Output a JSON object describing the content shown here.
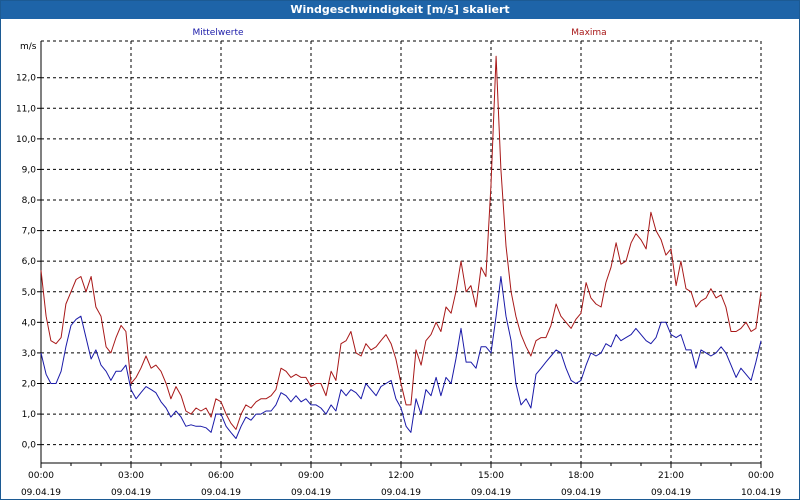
{
  "window": {
    "title": "Windgeschwindigkeit [m/s] skaliert"
  },
  "colors": {
    "titlebar": "#1e64a8",
    "series_mean": "#1a1aa8",
    "series_max": "#a81818",
    "grid": "#000000"
  },
  "chart_data": {
    "type": "line",
    "ylabel": "m/s",
    "ylim": [
      -0.6,
      13.2
    ],
    "y_ticks": [
      "0,0",
      "1,0",
      "2,0",
      "3,0",
      "4,0",
      "5,0",
      "6,0",
      "7,0",
      "8,0",
      "9,0",
      "10,0",
      "11,0",
      "12,0"
    ],
    "x_range_hours": [
      0,
      24
    ],
    "x_ticks": [
      {
        "time": "00:00",
        "date": "09.04.19"
      },
      {
        "time": "03:00",
        "date": "09.04.19"
      },
      {
        "time": "06:00",
        "date": "09.04.19"
      },
      {
        "time": "09:00",
        "date": "09.04.19"
      },
      {
        "time": "12:00",
        "date": "09.04.19"
      },
      {
        "time": "15:00",
        "date": "09.04.19"
      },
      {
        "time": "18:00",
        "date": "09.04.19"
      },
      {
        "time": "21:00",
        "date": "09.04.19"
      },
      {
        "time": "00:00",
        "date": "10.04.19"
      }
    ],
    "grid": true,
    "legend_placement": "top",
    "series": [
      {
        "name": "Mittelwerte",
        "color": "#1a1aa8",
        "points": [
          [
            0.0,
            3.0
          ],
          [
            0.17,
            2.3
          ],
          [
            0.33,
            2.0
          ],
          [
            0.5,
            2.0
          ],
          [
            0.67,
            2.4
          ],
          [
            0.83,
            3.2
          ],
          [
            1.0,
            3.9
          ],
          [
            1.17,
            4.1
          ],
          [
            1.33,
            4.2
          ],
          [
            1.5,
            3.5
          ],
          [
            1.67,
            2.8
          ],
          [
            1.83,
            3.1
          ],
          [
            2.0,
            2.6
          ],
          [
            2.17,
            2.4
          ],
          [
            2.33,
            2.1
          ],
          [
            2.5,
            2.4
          ],
          [
            2.67,
            2.4
          ],
          [
            2.83,
            2.6
          ],
          [
            3.0,
            1.8
          ],
          [
            3.17,
            1.5
          ],
          [
            3.33,
            1.7
          ],
          [
            3.5,
            1.9
          ],
          [
            3.67,
            1.8
          ],
          [
            3.83,
            1.7
          ],
          [
            4.0,
            1.4
          ],
          [
            4.17,
            1.2
          ],
          [
            4.33,
            0.9
          ],
          [
            4.5,
            1.1
          ],
          [
            4.67,
            0.9
          ],
          [
            4.83,
            0.6
          ],
          [
            5.0,
            0.65
          ],
          [
            5.17,
            0.6
          ],
          [
            5.33,
            0.6
          ],
          [
            5.5,
            0.55
          ],
          [
            5.67,
            0.4
          ],
          [
            5.83,
            1.0
          ],
          [
            6.0,
            1.0
          ],
          [
            6.17,
            0.6
          ],
          [
            6.33,
            0.4
          ],
          [
            6.5,
            0.2
          ],
          [
            6.67,
            0.6
          ],
          [
            6.83,
            0.9
          ],
          [
            7.0,
            0.8
          ],
          [
            7.17,
            1.0
          ],
          [
            7.33,
            1.0
          ],
          [
            7.5,
            1.1
          ],
          [
            7.67,
            1.1
          ],
          [
            7.83,
            1.3
          ],
          [
            8.0,
            1.7
          ],
          [
            8.17,
            1.6
          ],
          [
            8.33,
            1.4
          ],
          [
            8.5,
            1.6
          ],
          [
            8.67,
            1.4
          ],
          [
            8.83,
            1.5
          ],
          [
            9.0,
            1.3
          ],
          [
            9.17,
            1.3
          ],
          [
            9.33,
            1.2
          ],
          [
            9.5,
            1.0
          ],
          [
            9.67,
            1.3
          ],
          [
            9.83,
            1.1
          ],
          [
            10.0,
            1.8
          ],
          [
            10.17,
            1.6
          ],
          [
            10.33,
            1.8
          ],
          [
            10.5,
            1.7
          ],
          [
            10.67,
            1.5
          ],
          [
            10.83,
            2.0
          ],
          [
            11.0,
            1.8
          ],
          [
            11.17,
            1.6
          ],
          [
            11.33,
            1.9
          ],
          [
            11.5,
            2.0
          ],
          [
            11.67,
            2.1
          ],
          [
            11.83,
            1.5
          ],
          [
            12.0,
            1.2
          ],
          [
            12.17,
            0.6
          ],
          [
            12.33,
            0.4
          ],
          [
            12.5,
            1.5
          ],
          [
            12.67,
            1.0
          ],
          [
            12.83,
            1.8
          ],
          [
            13.0,
            1.6
          ],
          [
            13.17,
            2.2
          ],
          [
            13.33,
            1.6
          ],
          [
            13.5,
            2.2
          ],
          [
            13.67,
            2.0
          ],
          [
            13.83,
            2.8
          ],
          [
            14.0,
            3.8
          ],
          [
            14.17,
            2.7
          ],
          [
            14.33,
            2.7
          ],
          [
            14.5,
            2.5
          ],
          [
            14.67,
            3.2
          ],
          [
            14.83,
            3.2
          ],
          [
            15.0,
            3.0
          ],
          [
            15.17,
            4.2
          ],
          [
            15.33,
            5.5
          ],
          [
            15.5,
            4.2
          ],
          [
            15.67,
            3.4
          ],
          [
            15.83,
            2.0
          ],
          [
            16.0,
            1.3
          ],
          [
            16.17,
            1.5
          ],
          [
            16.33,
            1.2
          ],
          [
            16.5,
            2.3
          ],
          [
            16.67,
            2.5
          ],
          [
            16.83,
            2.7
          ],
          [
            17.0,
            2.9
          ],
          [
            17.17,
            3.1
          ],
          [
            17.33,
            3.0
          ],
          [
            17.5,
            2.5
          ],
          [
            17.67,
            2.1
          ],
          [
            17.83,
            2.0
          ],
          [
            18.0,
            2.1
          ],
          [
            18.17,
            2.6
          ],
          [
            18.33,
            3.0
          ],
          [
            18.5,
            2.9
          ],
          [
            18.67,
            3.0
          ],
          [
            18.83,
            3.3
          ],
          [
            19.0,
            3.2
          ],
          [
            19.17,
            3.6
          ],
          [
            19.33,
            3.4
          ],
          [
            19.5,
            3.5
          ],
          [
            19.67,
            3.6
          ],
          [
            19.83,
            3.8
          ],
          [
            20.0,
            3.6
          ],
          [
            20.17,
            3.4
          ],
          [
            20.33,
            3.3
          ],
          [
            20.5,
            3.5
          ],
          [
            20.67,
            4.0
          ],
          [
            20.83,
            4.0
          ],
          [
            21.0,
            3.6
          ],
          [
            21.17,
            3.5
          ],
          [
            21.33,
            3.6
          ],
          [
            21.5,
            3.1
          ],
          [
            21.67,
            3.1
          ],
          [
            21.83,
            2.5
          ],
          [
            22.0,
            3.1
          ],
          [
            22.17,
            3.0
          ],
          [
            22.33,
            2.9
          ],
          [
            22.5,
            3.0
          ],
          [
            22.67,
            3.2
          ],
          [
            22.83,
            3.0
          ],
          [
            23.0,
            2.6
          ],
          [
            23.17,
            2.2
          ],
          [
            23.33,
            2.5
          ],
          [
            23.5,
            2.3
          ],
          [
            23.67,
            2.1
          ],
          [
            23.83,
            2.7
          ],
          [
            24.0,
            3.4
          ]
        ]
      },
      {
        "name": "Maxima",
        "color": "#a81818",
        "points": [
          [
            0.0,
            5.7
          ],
          [
            0.17,
            4.2
          ],
          [
            0.33,
            3.4
          ],
          [
            0.5,
            3.3
          ],
          [
            0.67,
            3.5
          ],
          [
            0.83,
            4.6
          ],
          [
            1.0,
            5.0
          ],
          [
            1.17,
            5.4
          ],
          [
            1.33,
            5.5
          ],
          [
            1.5,
            5.0
          ],
          [
            1.67,
            5.5
          ],
          [
            1.83,
            4.5
          ],
          [
            2.0,
            4.2
          ],
          [
            2.17,
            3.2
          ],
          [
            2.33,
            3.0
          ],
          [
            2.5,
            3.5
          ],
          [
            2.67,
            3.9
          ],
          [
            2.83,
            3.7
          ],
          [
            3.0,
            2.0
          ],
          [
            3.17,
            2.2
          ],
          [
            3.33,
            2.5
          ],
          [
            3.5,
            2.9
          ],
          [
            3.67,
            2.5
          ],
          [
            3.83,
            2.6
          ],
          [
            4.0,
            2.4
          ],
          [
            4.17,
            2.0
          ],
          [
            4.33,
            1.5
          ],
          [
            4.5,
            1.9
          ],
          [
            4.67,
            1.6
          ],
          [
            4.83,
            1.1
          ],
          [
            5.0,
            1.0
          ],
          [
            5.17,
            1.2
          ],
          [
            5.33,
            1.1
          ],
          [
            5.5,
            1.2
          ],
          [
            5.67,
            0.9
          ],
          [
            5.83,
            1.5
          ],
          [
            6.0,
            1.4
          ],
          [
            6.17,
            1.0
          ],
          [
            6.33,
            0.7
          ],
          [
            6.5,
            0.5
          ],
          [
            6.67,
            1.0
          ],
          [
            6.83,
            1.3
          ],
          [
            7.0,
            1.2
          ],
          [
            7.17,
            1.4
          ],
          [
            7.33,
            1.5
          ],
          [
            7.5,
            1.5
          ],
          [
            7.67,
            1.6
          ],
          [
            7.83,
            1.8
          ],
          [
            8.0,
            2.5
          ],
          [
            8.17,
            2.4
          ],
          [
            8.33,
            2.2
          ],
          [
            8.5,
            2.3
          ],
          [
            8.67,
            2.2
          ],
          [
            8.83,
            2.2
          ],
          [
            9.0,
            1.9
          ],
          [
            9.17,
            2.0
          ],
          [
            9.33,
            2.0
          ],
          [
            9.5,
            1.6
          ],
          [
            9.67,
            2.4
          ],
          [
            9.83,
            2.1
          ],
          [
            10.0,
            3.3
          ],
          [
            10.17,
            3.4
          ],
          [
            10.33,
            3.7
          ],
          [
            10.5,
            3.0
          ],
          [
            10.67,
            2.9
          ],
          [
            10.83,
            3.3
          ],
          [
            11.0,
            3.1
          ],
          [
            11.17,
            3.2
          ],
          [
            11.33,
            3.4
          ],
          [
            11.5,
            3.6
          ],
          [
            11.67,
            3.3
          ],
          [
            11.83,
            2.8
          ],
          [
            12.0,
            2.0
          ],
          [
            12.17,
            1.3
          ],
          [
            12.33,
            1.3
          ],
          [
            12.5,
            3.1
          ],
          [
            12.67,
            2.6
          ],
          [
            12.83,
            3.4
          ],
          [
            13.0,
            3.6
          ],
          [
            13.17,
            4.0
          ],
          [
            13.33,
            3.7
          ],
          [
            13.5,
            4.5
          ],
          [
            13.67,
            4.3
          ],
          [
            13.83,
            5.0
          ],
          [
            14.0,
            6.0
          ],
          [
            14.17,
            5.0
          ],
          [
            14.33,
            5.2
          ],
          [
            14.5,
            4.5
          ],
          [
            14.67,
            5.8
          ],
          [
            14.83,
            5.5
          ],
          [
            15.0,
            8.5
          ],
          [
            15.17,
            12.7
          ],
          [
            15.33,
            9.0
          ],
          [
            15.5,
            6.5
          ],
          [
            15.67,
            5.0
          ],
          [
            15.83,
            4.2
          ],
          [
            16.0,
            3.6
          ],
          [
            16.17,
            3.2
          ],
          [
            16.33,
            2.9
          ],
          [
            16.5,
            3.4
          ],
          [
            16.67,
            3.5
          ],
          [
            16.83,
            3.5
          ],
          [
            17.0,
            3.9
          ],
          [
            17.17,
            4.6
          ],
          [
            17.33,
            4.2
          ],
          [
            17.5,
            4.0
          ],
          [
            17.67,
            3.8
          ],
          [
            17.83,
            4.1
          ],
          [
            18.0,
            4.3
          ],
          [
            18.17,
            5.3
          ],
          [
            18.33,
            4.8
          ],
          [
            18.5,
            4.6
          ],
          [
            18.67,
            4.5
          ],
          [
            18.83,
            5.3
          ],
          [
            19.0,
            5.8
          ],
          [
            19.17,
            6.6
          ],
          [
            19.33,
            5.9
          ],
          [
            19.5,
            6.0
          ],
          [
            19.67,
            6.6
          ],
          [
            19.83,
            6.9
          ],
          [
            20.0,
            6.7
          ],
          [
            20.17,
            6.4
          ],
          [
            20.33,
            7.6
          ],
          [
            20.5,
            7.0
          ],
          [
            20.67,
            6.7
          ],
          [
            20.83,
            6.2
          ],
          [
            21.0,
            6.4
          ],
          [
            21.17,
            5.2
          ],
          [
            21.33,
            6.0
          ],
          [
            21.5,
            5.1
          ],
          [
            21.67,
            5.0
          ],
          [
            21.83,
            4.5
          ],
          [
            22.0,
            4.7
          ],
          [
            22.17,
            4.8
          ],
          [
            22.33,
            5.1
          ],
          [
            22.5,
            4.8
          ],
          [
            22.67,
            4.9
          ],
          [
            22.83,
            4.5
          ],
          [
            23.0,
            3.7
          ],
          [
            23.17,
            3.7
          ],
          [
            23.33,
            3.8
          ],
          [
            23.5,
            4.0
          ],
          [
            23.67,
            3.7
          ],
          [
            23.83,
            3.8
          ],
          [
            24.0,
            5.0
          ]
        ]
      }
    ]
  }
}
